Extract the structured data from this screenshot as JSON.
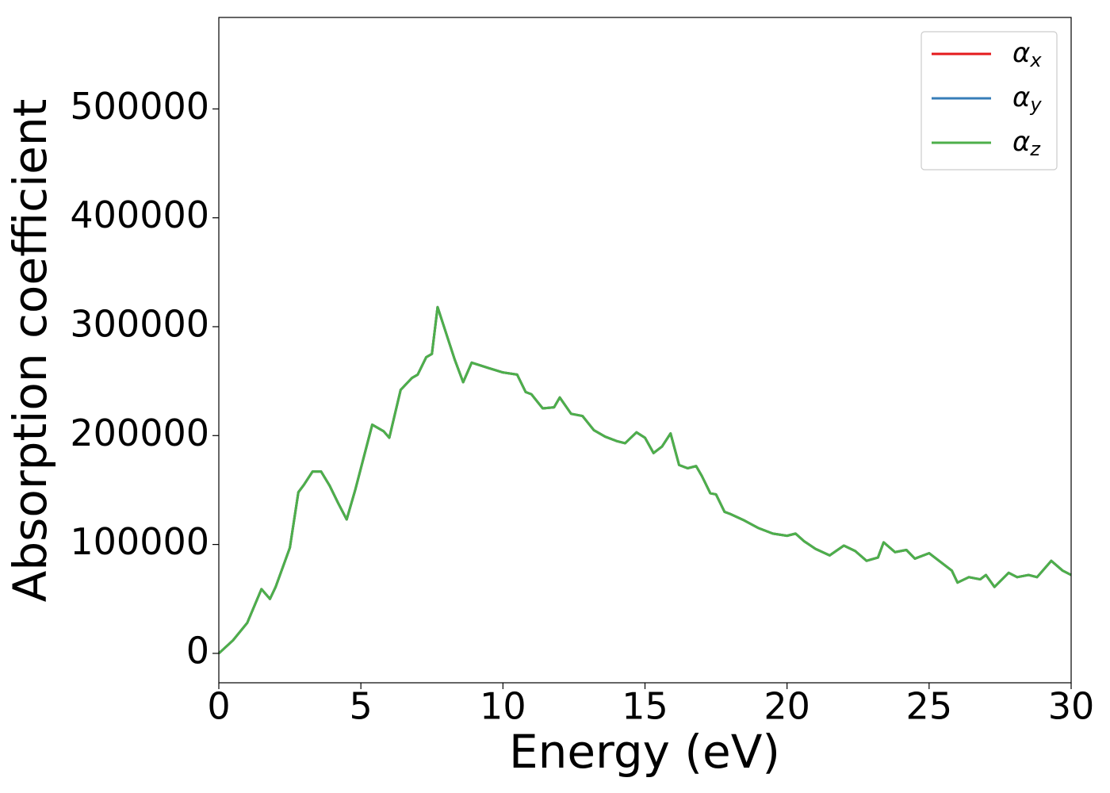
{
  "chart_data": {
    "type": "line",
    "xlabel": "Energy (eV)",
    "ylabel": "Absorption coefficient",
    "x": [
      0,
      0.5,
      1.0,
      1.5,
      1.8,
      2.0,
      2.5,
      2.8,
      3.0,
      3.3,
      3.6,
      3.9,
      4.2,
      4.5,
      4.8,
      5.0,
      5.4,
      5.8,
      6.0,
      6.4,
      6.8,
      7.0,
      7.3,
      7.5,
      7.7,
      8.0,
      8.3,
      8.6,
      8.9,
      9.5,
      10.0,
      10.5,
      10.8,
      11.0,
      11.4,
      11.8,
      12.0,
      12.4,
      12.8,
      13.2,
      13.6,
      14.0,
      14.3,
      14.7,
      15.0,
      15.3,
      15.6,
      15.9,
      16.2,
      16.5,
      16.8,
      17.0,
      17.3,
      17.5,
      17.8,
      18.0,
      18.5,
      19.0,
      19.5,
      20.0,
      20.3,
      20.6,
      21.0,
      21.5,
      22.0,
      22.4,
      22.8,
      23.2,
      23.4,
      23.8,
      24.2,
      24.5,
      25.0,
      25.4,
      25.8,
      26.0,
      26.4,
      26.8,
      27.0,
      27.3,
      27.8,
      28.1,
      28.5,
      28.8,
      29.3,
      29.7,
      30.0
    ],
    "series": [
      {
        "name": "αx",
        "color": "#e41a1c",
        "values": [
          0,
          12000,
          28000,
          59000,
          50000,
          61000,
          97000,
          148000,
          155000,
          167000,
          167000,
          154000,
          138000,
          123000,
          150000,
          170000,
          210000,
          204000,
          198000,
          242000,
          253000,
          256000,
          272000,
          275000,
          318000,
          294000,
          270000,
          249000,
          267000,
          262000,
          258000,
          256000,
          240000,
          238000,
          225000,
          226000,
          235000,
          220000,
          218000,
          205000,
          199000,
          195000,
          193000,
          203000,
          198000,
          184000,
          190000,
          202000,
          173000,
          170000,
          172000,
          163000,
          147000,
          146000,
          130000,
          128000,
          122000,
          115000,
          110000,
          108000,
          110000,
          103000,
          96000,
          90000,
          99000,
          94000,
          85000,
          88000,
          102000,
          93000,
          95000,
          87000,
          92000,
          84000,
          76000,
          65000,
          70000,
          68000,
          72000,
          61000,
          74000,
          70000,
          72000,
          70000,
          85000,
          76000,
          72000
        ]
      },
      {
        "name": "αy",
        "color": "#377eb8",
        "values": [
          0,
          12000,
          28000,
          59000,
          50000,
          61000,
          97000,
          148000,
          155000,
          167000,
          167000,
          154000,
          138000,
          123000,
          150000,
          170000,
          210000,
          204000,
          198000,
          242000,
          253000,
          256000,
          272000,
          275000,
          318000,
          294000,
          270000,
          249000,
          267000,
          262000,
          258000,
          256000,
          240000,
          238000,
          225000,
          226000,
          235000,
          220000,
          218000,
          205000,
          199000,
          195000,
          193000,
          203000,
          198000,
          184000,
          190000,
          202000,
          173000,
          170000,
          172000,
          163000,
          147000,
          146000,
          130000,
          128000,
          122000,
          115000,
          110000,
          108000,
          110000,
          103000,
          96000,
          90000,
          99000,
          94000,
          85000,
          88000,
          102000,
          93000,
          95000,
          87000,
          92000,
          84000,
          76000,
          65000,
          70000,
          68000,
          72000,
          61000,
          74000,
          70000,
          72000,
          70000,
          85000,
          76000,
          72000
        ]
      },
      {
        "name": "αz",
        "color": "#4daf4a",
        "values": [
          0,
          12000,
          28000,
          59000,
          50000,
          61000,
          97000,
          148000,
          155000,
          167000,
          167000,
          154000,
          138000,
          123000,
          150000,
          170000,
          210000,
          204000,
          198000,
          242000,
          253000,
          256000,
          272000,
          275000,
          318000,
          294000,
          270000,
          249000,
          267000,
          262000,
          258000,
          256000,
          240000,
          238000,
          225000,
          226000,
          235000,
          220000,
          218000,
          205000,
          199000,
          195000,
          193000,
          203000,
          198000,
          184000,
          190000,
          202000,
          173000,
          170000,
          172000,
          163000,
          147000,
          146000,
          130000,
          128000,
          122000,
          115000,
          110000,
          108000,
          110000,
          103000,
          96000,
          90000,
          99000,
          94000,
          85000,
          88000,
          102000,
          93000,
          95000,
          87000,
          92000,
          84000,
          76000,
          65000,
          70000,
          68000,
          72000,
          61000,
          74000,
          70000,
          72000,
          70000,
          85000,
          76000,
          72000
        ]
      }
    ],
    "xlim": [
      0,
      30
    ],
    "xticks": [
      0,
      5,
      10,
      15,
      20,
      25,
      30
    ],
    "ylim": [
      -27000,
      584000
    ],
    "yticks": [
      0,
      100000,
      200000,
      300000,
      400000,
      500000
    ],
    "grid": false,
    "legend": "upper right"
  }
}
